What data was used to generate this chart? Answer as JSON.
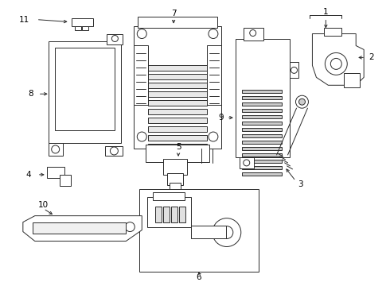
{
  "bg_color": "#ffffff",
  "line_color": "#2a2a2a",
  "label_color": "#000000",
  "lw": 0.7,
  "figsize": [
    4.9,
    3.6
  ],
  "dpi": 100
}
